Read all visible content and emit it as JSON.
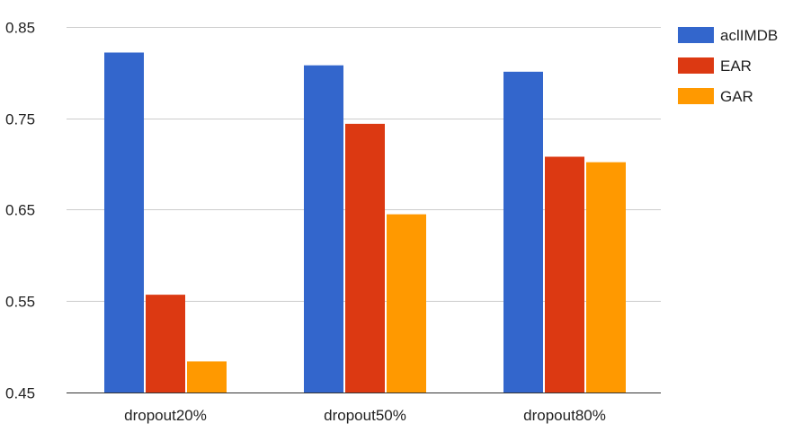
{
  "chart_data": {
    "type": "bar",
    "categories": [
      "dropout20%",
      "dropout50%",
      "dropout80%"
    ],
    "series": [
      {
        "name": "aclIMDB",
        "color": "#3366cc",
        "values": [
          0.822,
          0.808,
          0.801
        ]
      },
      {
        "name": "EAR",
        "color": "#dc3912",
        "values": [
          0.557,
          0.744,
          0.708
        ]
      },
      {
        "name": "GAR",
        "color": "#ff9900",
        "values": [
          0.484,
          0.645,
          0.702
        ]
      }
    ],
    "title": "",
    "xlabel": "",
    "ylabel": "",
    "ylim": [
      0.45,
      0.85
    ],
    "yticks": [
      {
        "value": 0.45,
        "label": "0.45"
      },
      {
        "value": 0.55,
        "label": "0.55"
      },
      {
        "value": 0.65,
        "label": "0.65"
      },
      {
        "value": 0.75,
        "label": "0.75"
      },
      {
        "value": 0.85,
        "label": "0.85"
      }
    ],
    "grid": true,
    "legend_position": "top-right",
    "gridline_color": "#cccccc",
    "baseline_color": "#333333"
  }
}
